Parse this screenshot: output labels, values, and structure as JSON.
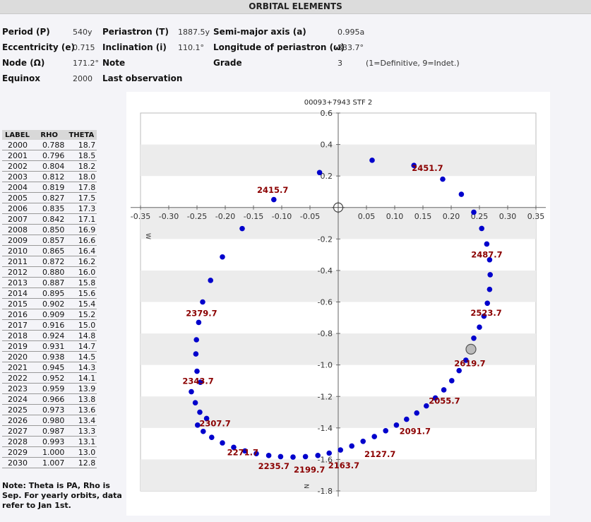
{
  "header": {
    "title": "ORBITAL ELEMENTS"
  },
  "elements": {
    "period_label": "Period (P)",
    "period_value": "540y",
    "periastron_label": "Periastron (T)",
    "periastron_value": "1887.5y",
    "semimajor_label": "Semi-major axis (a)",
    "semimajor_value": "0.995a",
    "ecc_label": "Eccentricity (e)",
    "ecc_value": "0.715",
    "incl_label": "Inclination (i)",
    "incl_value": "110.1°",
    "longper_label": "Longitude of periastron (ω)",
    "longper_value": "333.7°",
    "node_label": "Node (Ω)",
    "node_value": "171.2°",
    "note_label": "Note",
    "grade_label": "Grade",
    "grade_value": "3",
    "grade_hint": "(1=Definitive, 9=Indet.)",
    "equinox_label": "Equinox",
    "equinox_value": "2000",
    "lastobs_label": "Last observation"
  },
  "table": {
    "headers": [
      "LABEL",
      "RHO",
      "THETA"
    ],
    "rows": [
      [
        "2000",
        "0.788",
        "18.7"
      ],
      [
        "2001",
        "0.796",
        "18.5"
      ],
      [
        "2002",
        "0.804",
        "18.2"
      ],
      [
        "2003",
        "0.812",
        "18.0"
      ],
      [
        "2004",
        "0.819",
        "17.8"
      ],
      [
        "2005",
        "0.827",
        "17.5"
      ],
      [
        "2006",
        "0.835",
        "17.3"
      ],
      [
        "2007",
        "0.842",
        "17.1"
      ],
      [
        "2008",
        "0.850",
        "16.9"
      ],
      [
        "2009",
        "0.857",
        "16.6"
      ],
      [
        "2010",
        "0.865",
        "16.4"
      ],
      [
        "2011",
        "0.872",
        "16.2"
      ],
      [
        "2012",
        "0.880",
        "16.0"
      ],
      [
        "2013",
        "0.887",
        "15.8"
      ],
      [
        "2014",
        "0.895",
        "15.6"
      ],
      [
        "2015",
        "0.902",
        "15.4"
      ],
      [
        "2016",
        "0.909",
        "15.2"
      ],
      [
        "2017",
        "0.916",
        "15.0"
      ],
      [
        "2018",
        "0.924",
        "14.8"
      ],
      [
        "2019",
        "0.931",
        "14.7"
      ],
      [
        "2020",
        "0.938",
        "14.5"
      ],
      [
        "2021",
        "0.945",
        "14.3"
      ],
      [
        "2022",
        "0.952",
        "14.1"
      ],
      [
        "2023",
        "0.959",
        "13.9"
      ],
      [
        "2024",
        "0.966",
        "13.8"
      ],
      [
        "2025",
        "0.973",
        "13.6"
      ],
      [
        "2026",
        "0.980",
        "13.4"
      ],
      [
        "2027",
        "0.987",
        "13.3"
      ],
      [
        "2028",
        "0.993",
        "13.1"
      ],
      [
        "2029",
        "1.000",
        "13.0"
      ],
      [
        "2030",
        "1.007",
        "12.8"
      ]
    ]
  },
  "note": "Note: Theta is PA, Rho is Sep. For yearly orbits, data refer to Jan 1st.",
  "chart_data": {
    "type": "scatter",
    "title": "00093+7943  STF     2",
    "x_ticks": [
      -0.35,
      -0.3,
      -0.25,
      -0.2,
      -0.15,
      -0.1,
      -0.05,
      0.05,
      0.1,
      0.15,
      0.2,
      0.25,
      0.3,
      0.35
    ],
    "x_tick_labels": [
      "-0.35",
      "-0.30",
      "-0.25",
      "-0.20",
      "-0.15",
      "-0.10",
      "-0.05",
      "0.05",
      "0.10",
      "0.15",
      "0.20",
      "0.25",
      "0.30",
      "0.35"
    ],
    "y_ticks": [
      0.6,
      0.4,
      0.2,
      -0.2,
      -0.4,
      -0.6,
      -0.8,
      -1.0,
      -1.2,
      -1.4,
      -1.6,
      -1.8
    ],
    "y_tick_labels": [
      "0.6",
      "0.4",
      "0.2",
      "-0.2",
      "-0.4",
      "-0.6",
      "-0.8",
      "-1.0",
      "-1.2",
      "-1.4",
      "-1.6",
      "-1.8"
    ],
    "xlim": [
      -0.35,
      0.35
    ],
    "ylim": [
      -1.8,
      0.6
    ],
    "east_label": "W",
    "north_label": "N",
    "primary": [
      0,
      0
    ],
    "current_position": [
      0.235,
      -0.9
    ],
    "orbit_points": [
      [
        -0.033,
        0.222
      ],
      [
        0.06,
        0.3
      ],
      [
        0.134,
        0.267
      ],
      [
        0.185,
        0.18
      ],
      [
        0.218,
        0.084
      ],
      [
        0.24,
        -0.03
      ],
      [
        0.254,
        -0.133
      ],
      [
        0.263,
        -0.232
      ],
      [
        0.268,
        -0.332
      ],
      [
        0.269,
        -0.427
      ],
      [
        0.268,
        -0.52
      ],
      [
        0.264,
        -0.608
      ],
      [
        0.258,
        -0.69
      ],
      [
        0.25,
        -0.76
      ],
      [
        0.24,
        -0.83
      ],
      [
        0.226,
        -0.97
      ],
      [
        0.214,
        -1.036
      ],
      [
        0.201,
        -1.1
      ],
      [
        0.187,
        -1.158
      ],
      [
        0.172,
        -1.21
      ],
      [
        0.156,
        -1.26
      ],
      [
        0.139,
        -1.305
      ],
      [
        0.121,
        -1.345
      ],
      [
        0.103,
        -1.382
      ],
      [
        0.084,
        -1.418
      ],
      [
        0.064,
        -1.455
      ],
      [
        0.044,
        -1.485
      ],
      [
        0.024,
        -1.515
      ],
      [
        0.004,
        -1.54
      ],
      [
        -0.016,
        -1.56
      ],
      [
        -0.036,
        -1.575
      ],
      [
        -0.058,
        -1.582
      ],
      [
        -0.08,
        -1.585
      ],
      [
        -0.102,
        -1.582
      ],
      [
        -0.123,
        -1.575
      ],
      [
        -0.145,
        -1.563
      ],
      [
        -0.165,
        -1.546
      ],
      [
        -0.185,
        -1.523
      ],
      [
        -0.205,
        -1.495
      ],
      [
        -0.224,
        -1.46
      ],
      [
        -0.239,
        -1.422
      ],
      [
        -0.249,
        -1.382
      ],
      [
        -0.233,
        -1.34
      ],
      [
        -0.245,
        -1.3
      ],
      [
        -0.253,
        -1.24
      ],
      [
        -0.26,
        -1.17
      ],
      [
        -0.244,
        -1.11
      ],
      [
        -0.25,
        -1.04
      ],
      [
        -0.252,
        -0.93
      ],
      [
        -0.251,
        -0.84
      ],
      [
        -0.247,
        -0.73
      ],
      [
        -0.24,
        -0.6
      ],
      [
        -0.226,
        -0.463
      ],
      [
        -0.205,
        -0.314
      ],
      [
        -0.17,
        -0.134
      ],
      [
        -0.114,
        0.05
      ]
    ],
    "epoch_labels": [
      {
        "label": "2451.7",
        "x": 0.158,
        "y": 0.25
      },
      {
        "label": "2415.7",
        "x": -0.116,
        "y": 0.112
      },
      {
        "label": "2487.7",
        "x": 0.263,
        "y": -0.3
      },
      {
        "label": "2523.7",
        "x": 0.262,
        "y": -0.67
      },
      {
        "label": "2379.7",
        "x": -0.242,
        "y": -0.672
      },
      {
        "label": "2619.7",
        "x": 0.233,
        "y": -0.99
      },
      {
        "label": "2343.7",
        "x": -0.248,
        "y": -1.102
      },
      {
        "label": "2055.7",
        "x": 0.188,
        "y": -1.228
      },
      {
        "label": "2307.7",
        "x": -0.218,
        "y": -1.372
      },
      {
        "label": "2091.7",
        "x": 0.136,
        "y": -1.422
      },
      {
        "label": "2271.7",
        "x": -0.169,
        "y": -1.556
      },
      {
        "label": "2127.7",
        "x": 0.074,
        "y": -1.566
      },
      {
        "label": "2235.7",
        "x": -0.114,
        "y": -1.643
      },
      {
        "label": "2163.7",
        "x": 0.01,
        "y": -1.638
      },
      {
        "label": "2199.7",
        "x": -0.051,
        "y": -1.665
      }
    ],
    "colors": {
      "point": "#0000cc",
      "epoch_label": "#8b0000",
      "band": "#ececec",
      "axis": "#666666"
    }
  }
}
